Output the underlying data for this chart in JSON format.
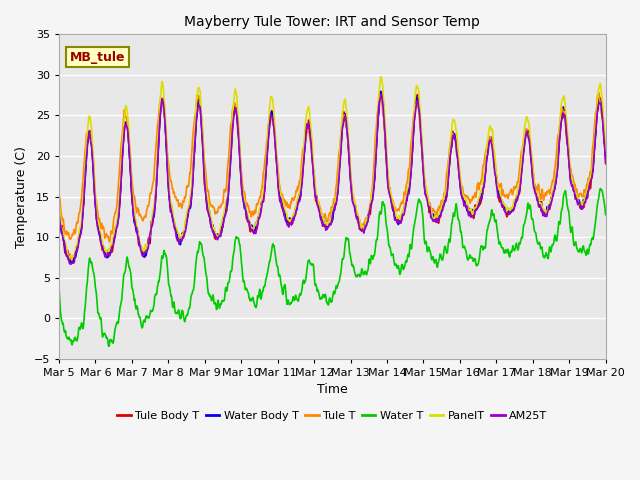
{
  "title": "Mayberry Tule Tower: IRT and Sensor Temp",
  "xlabel": "Time",
  "ylabel": "Temperature (C)",
  "ylim": [
    -5,
    35
  ],
  "yticks": [
    -5,
    0,
    5,
    10,
    15,
    20,
    25,
    30,
    35
  ],
  "xtick_labels": [
    "Mar 5",
    "Mar 6",
    "Mar 7",
    "Mar 8",
    "Mar 9",
    "Mar 10",
    "Mar 11",
    "Mar 12",
    "Mar 13",
    "Mar 14",
    "Mar 15",
    "Mar 16",
    "Mar 17",
    "Mar 18",
    "Mar 19",
    "Mar 20"
  ],
  "legend_labels": [
    "Tule Body T",
    "Water Body T",
    "Tule T",
    "Water T",
    "PanelT",
    "AM25T"
  ],
  "line_colors": [
    "#dd0000",
    "#0000ee",
    "#ff8800",
    "#00cc00",
    "#dddd00",
    "#9900cc"
  ],
  "line_widths": [
    1.2,
    1.2,
    1.2,
    1.2,
    1.2,
    1.2
  ],
  "annotation_text": "MB_tule",
  "bg_color": "#e8e8e8",
  "grid_color": "#ffffff",
  "n_points": 2880,
  "start_day": 5,
  "end_day": 20,
  "fig_width": 6.4,
  "fig_height": 4.8,
  "title_fontsize": 10,
  "axis_fontsize": 9,
  "tick_fontsize": 8
}
